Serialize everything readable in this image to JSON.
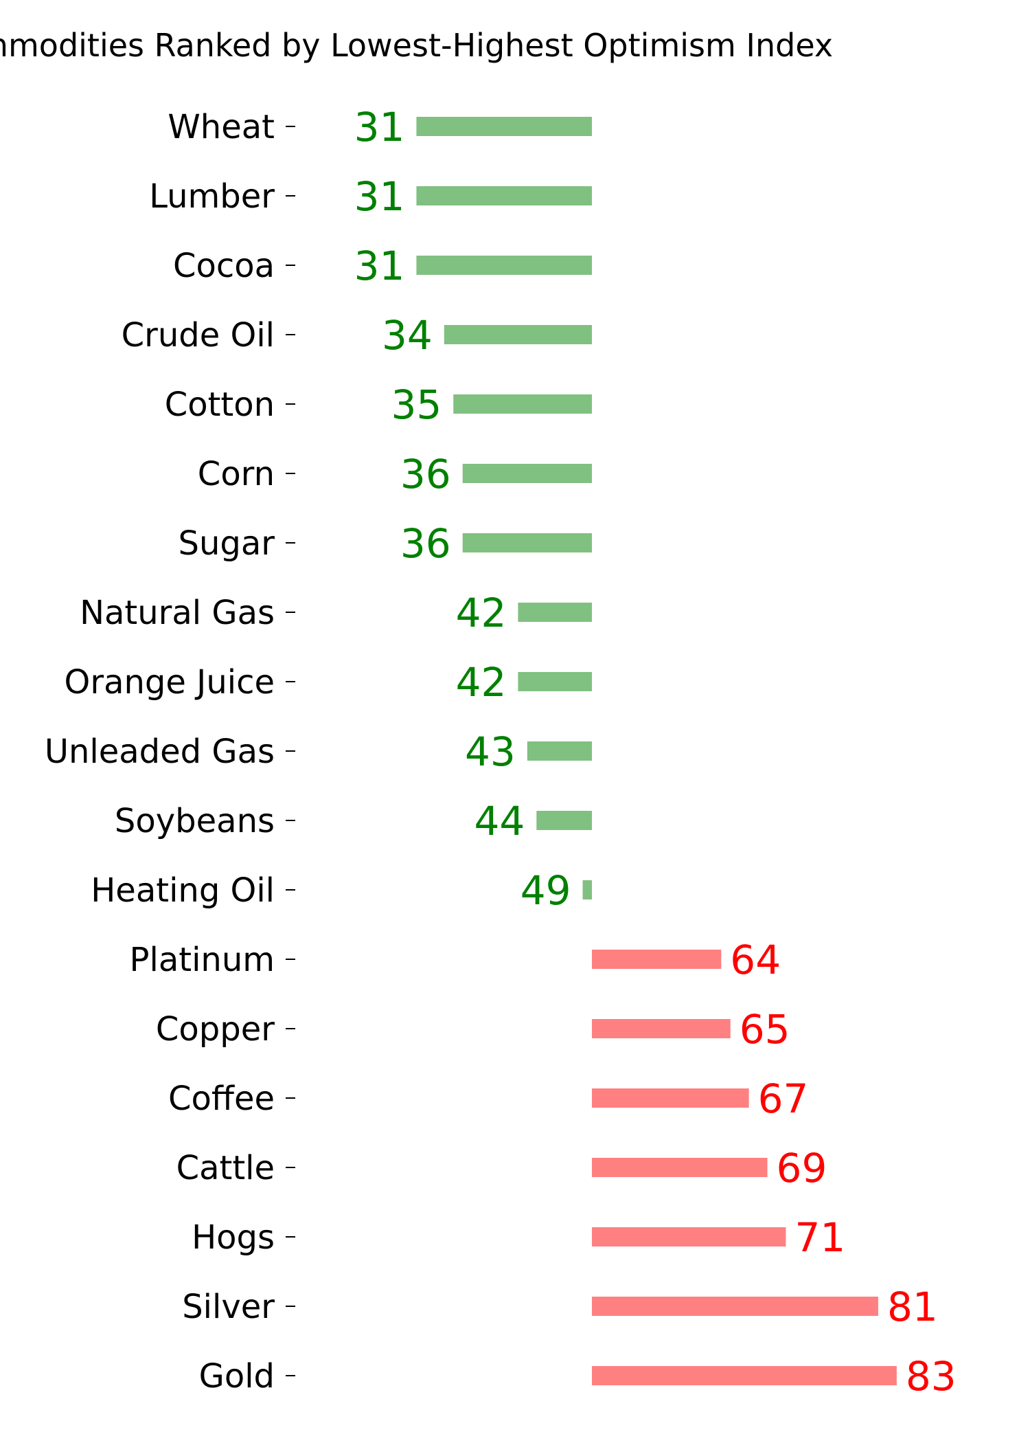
{
  "chart_data": {
    "type": "bar",
    "orientation": "horizontal",
    "title": "Commodities Ranked by Lowest-Highest Optimism Index",
    "xlabel": "",
    "ylabel": "",
    "categories": [
      "Wheat",
      "Lumber",
      "Cocoa",
      "Crude Oil",
      "Cotton",
      "Corn",
      "Sugar",
      "Natural Gas",
      "Orange Juice",
      "Unleaded Gas",
      "Soybeans",
      "Heating Oil",
      "Platinum",
      "Copper",
      "Coffee",
      "Cattle",
      "Hogs",
      "Silver",
      "Gold"
    ],
    "values": [
      31,
      31,
      31,
      34,
      35,
      36,
      36,
      42,
      42,
      43,
      44,
      49,
      64,
      65,
      67,
      69,
      71,
      81,
      83
    ],
    "baseline": 50,
    "xlim": [
      10,
      100
    ],
    "grid": false,
    "colors": {
      "below_baseline_bar": "#80c080",
      "below_baseline_text": "#008000",
      "above_baseline_bar": "#ff8080",
      "above_baseline_text": "#ff0000"
    }
  }
}
